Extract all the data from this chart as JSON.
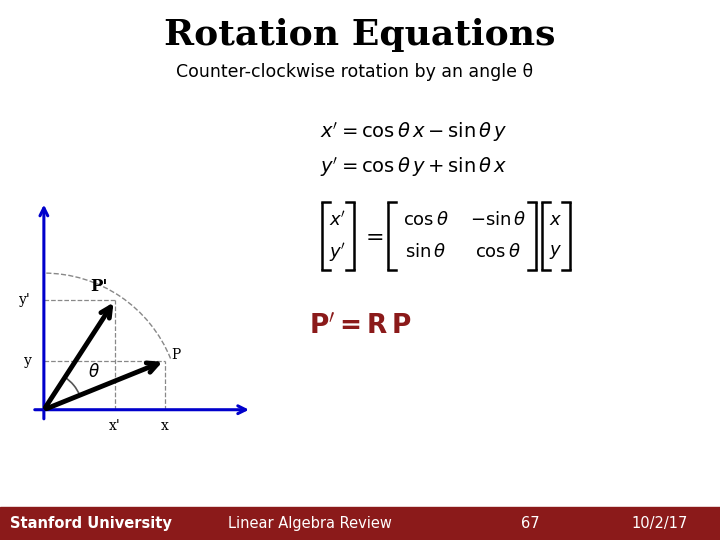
{
  "title": "Rotation Equations",
  "subtitle": "Counter-clockwise rotation by an angle θ",
  "bg_color": "#ffffff",
  "footer_bg": "#8B1A1A",
  "footer_text_left": "Stanford University",
  "footer_text_mid": "Linear Algebra Review",
  "footer_text_num": "67",
  "footer_text_date": "10/2/17",
  "axis_color": "#0000cc",
  "vector_color": "#000000",
  "dashed_color": "#888888",
  "arc_color": "#555555",
  "phi_deg": 22,
  "theta_deg": 35,
  "vec_r": 0.88
}
